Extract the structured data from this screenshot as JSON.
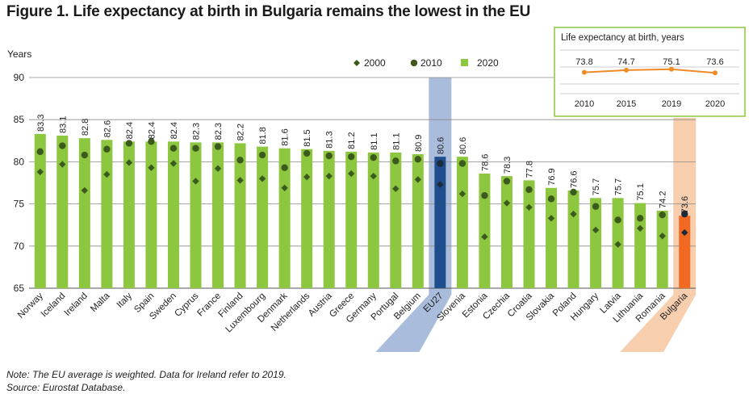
{
  "title": "Figure 1. Life expectancy at birth in Bulgaria remains the lowest in the EU",
  "notes": {
    "note": "Note: The EU average is weighted. Data for Ireland refer to 2019.",
    "source": "Source: Eurostat Database."
  },
  "colors": {
    "bar": "#8dc63f",
    "eu_bar": "#1f4e8c",
    "bg_bar": "#f26a21",
    "marker": "#3d5a1e",
    "eu_band": "#a9bcdc",
    "bg_band": "#f8cfae",
    "inset_border": "#8dc63f",
    "inset_line": "#f08a24",
    "grid": "#888888"
  },
  "chart_data": [
    {
      "type": "bar",
      "ylabel": "Years",
      "ylim": [
        65,
        90
      ],
      "yticks": [
        65,
        70,
        75,
        80,
        85,
        90
      ],
      "categories": [
        "Norway",
        "Iceland",
        "Ireland",
        "Malta",
        "Italy",
        "Spain",
        "Sweden",
        "Cyprus",
        "France",
        "Finland",
        "Luxembourg",
        "Denmark",
        "Netherlands",
        "Austria",
        "Greece",
        "Germany",
        "Portugal",
        "Belgium",
        "EU27",
        "Slovenia",
        "Estonia",
        "Czechia",
        "Croatia",
        "Slovakia",
        "Poland",
        "Hungary",
        "Latvia",
        "Lithuania",
        "Romania",
        "Bulgaria"
      ],
      "highlight": {
        "eu": "EU27",
        "focus": "Bulgaria"
      },
      "legend": [
        "2000",
        "2010",
        "2020"
      ],
      "series": [
        {
          "name": "2020",
          "style": "bar",
          "values": [
            83.3,
            83.1,
            82.8,
            82.6,
            82.4,
            82.4,
            82.4,
            82.3,
            82.3,
            82.2,
            81.8,
            81.6,
            81.5,
            81.3,
            81.2,
            81.1,
            81.1,
            80.9,
            80.6,
            80.6,
            78.6,
            78.3,
            77.8,
            76.9,
            76.6,
            75.7,
            75.7,
            75.1,
            74.2,
            73.6
          ],
          "labels": [
            "83.3",
            "83.1",
            "82.8",
            "82.6",
            "82.4",
            "82.4",
            "82.4",
            "82.3",
            "82.3",
            "82.2",
            "81.8",
            "81.6",
            "81.5",
            "81.3",
            "81.2",
            "81.1",
            "81.1",
            "80.9",
            "80.6",
            "80.6",
            "78.6",
            "78.3",
            "77.8",
            "76.9",
            "76.6",
            "75.7",
            "75.7",
            "75.1",
            "74.2",
            "73.6"
          ]
        },
        {
          "name": "2010",
          "style": "circle",
          "values": [
            81.2,
            81.9,
            80.8,
            81.5,
            82.2,
            82.4,
            81.6,
            81.6,
            81.8,
            80.2,
            80.8,
            79.3,
            81.0,
            80.7,
            80.6,
            80.5,
            80.1,
            80.3,
            79.8,
            79.8,
            76.0,
            77.7,
            76.7,
            75.6,
            76.4,
            74.7,
            73.1,
            73.3,
            73.7,
            73.8
          ]
        },
        {
          "name": "2000",
          "style": "diamond",
          "values": [
            78.8,
            79.7,
            76.6,
            78.5,
            79.9,
            79.3,
            79.8,
            77.7,
            79.2,
            77.8,
            78.0,
            76.9,
            78.2,
            78.3,
            78.6,
            78.3,
            76.8,
            77.9,
            77.3,
            76.2,
            71.1,
            75.1,
            74.6,
            73.3,
            73.8,
            71.9,
            70.2,
            72.1,
            71.2,
            71.6
          ]
        }
      ]
    },
    {
      "type": "line",
      "title": "Life expectancy at birth, years",
      "categories": [
        "2010",
        "2015",
        "2019",
        "2020"
      ],
      "values": [
        73.8,
        74.7,
        75.1,
        73.6
      ],
      "labels": [
        "73.8",
        "74.7",
        "75.1",
        "73.6"
      ]
    }
  ]
}
